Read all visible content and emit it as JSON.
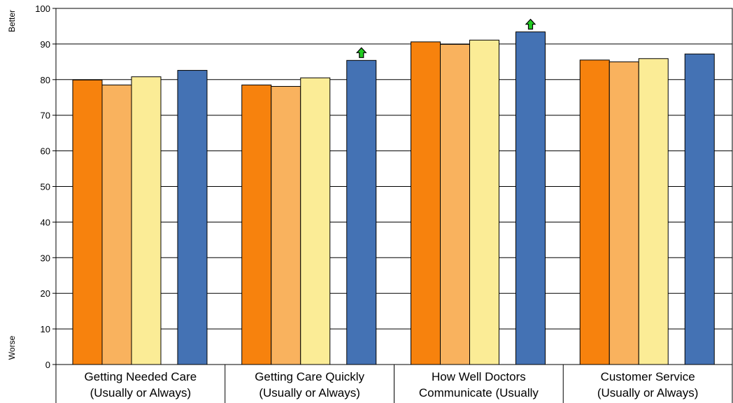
{
  "chart_data": {
    "type": "bar",
    "categories": [
      [
        "Getting Needed Care",
        "(Usually or Always)"
      ],
      [
        "Getting Care Quickly",
        "(Usually or Always)"
      ],
      [
        "How Well Doctors",
        "Communicate (Usually"
      ],
      [
        "Customer Service",
        "(Usually or Always)"
      ]
    ],
    "series": [
      {
        "values": [
          79.9,
          78.5,
          90.6,
          85.5
        ],
        "color": "#f7820d"
      },
      {
        "values": [
          78.5,
          78.1,
          89.9,
          85.0
        ],
        "color": "#f9b25e"
      },
      {
        "values": [
          80.8,
          80.5,
          91.1,
          85.9
        ],
        "color": "#fbec96"
      },
      {
        "values": [
          82.6,
          85.4,
          93.4,
          87.2
        ],
        "color": "#4472b4"
      }
    ],
    "ylim": [
      0,
      100
    ],
    "yticks": [
      0,
      10,
      20,
      30,
      40,
      50,
      60,
      70,
      80,
      90,
      100
    ],
    "grid": true,
    "ylabel_top": "Better",
    "ylabel_bottom": "Worse",
    "markers": [
      {
        "category": 1,
        "series": 3,
        "icon": "green-up-arrow-icon",
        "meaning": "significantly better"
      },
      {
        "category": 2,
        "series": 3,
        "icon": "green-up-arrow-icon",
        "meaning": "significantly better"
      }
    ],
    "marker_color": "#22cc22"
  }
}
